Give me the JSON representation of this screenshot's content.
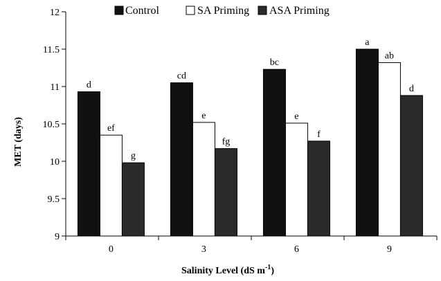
{
  "chart_data": {
    "type": "bar",
    "categories": [
      "0",
      "3",
      "6",
      "9"
    ],
    "xlabel": "Salinity Level (dS m",
    "xlabel_sup": "-1",
    "xlabel_end": ")",
    "ylabel": "MET (days)",
    "ylim": [
      9,
      12
    ],
    "yticks": [
      "9",
      "9.5",
      "10",
      "10.5",
      "11",
      "11.5",
      "12"
    ],
    "grid": false,
    "legend_position": "top",
    "series": [
      {
        "name": "Control",
        "color": "#111111",
        "values": [
          10.93,
          11.05,
          11.23,
          11.5
        ],
        "labels": [
          "d",
          "cd",
          "bc",
          "a"
        ]
      },
      {
        "name": "SA Priming",
        "color": "#ffffff",
        "values": [
          10.35,
          10.52,
          10.51,
          11.32
        ],
        "labels": [
          "ef",
          "e",
          "e",
          "ab"
        ]
      },
      {
        "name": "ASA Priming",
        "color": "#2a2a2a",
        "values": [
          9.98,
          10.17,
          10.27,
          10.88
        ],
        "labels": [
          "g",
          "fg",
          "f",
          "d"
        ]
      }
    ]
  }
}
